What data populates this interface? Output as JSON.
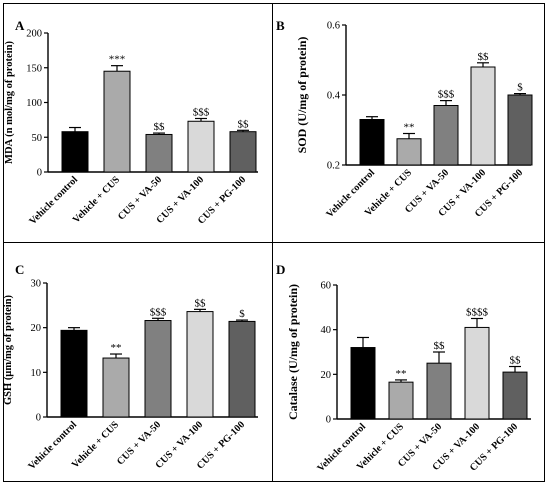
{
  "chart_data": [
    {
      "panel_label": "A",
      "type": "bar",
      "ylabel": "MDA (n mol/mg of protein)",
      "ylim": [
        0,
        200
      ],
      "yticks": [
        "0",
        "50",
        "100",
        "150",
        "200"
      ],
      "categories": [
        "Vehicle control",
        "Vehicle + CUS",
        "CUS + VA-50",
        "CUS + VA-100",
        "CUS + PG-100"
      ],
      "values": [
        58,
        145,
        54,
        73,
        58
      ],
      "errors": [
        6,
        8,
        2,
        4,
        2
      ],
      "annotations": [
        "",
        "***",
        "$$",
        "$$$",
        "$$"
      ],
      "colors": [
        "#000000",
        "#aaaaaa",
        "#808080",
        "#d9d9d9",
        "#606060"
      ]
    },
    {
      "panel_label": "B",
      "type": "bar",
      "ylabel": "SOD (U/mg of protein)",
      "ylim": [
        0.2,
        0.6
      ],
      "yticks": [
        "0.2",
        "0.4",
        "0.6"
      ],
      "categories": [
        "Vehicle control",
        "Vehicle + CUS",
        "CUS + VA-50",
        "CUS + VA-100",
        "CUS + PG-100"
      ],
      "values": [
        0.33,
        0.275,
        0.37,
        0.48,
        0.4
      ],
      "errors": [
        0.008,
        0.015,
        0.014,
        0.012,
        0.004
      ],
      "annotations": [
        "",
        "**",
        "$$$",
        "$$",
        "$"
      ],
      "colors": [
        "#000000",
        "#aaaaaa",
        "#808080",
        "#d9d9d9",
        "#606060"
      ]
    },
    {
      "panel_label": "C",
      "type": "bar",
      "ylabel": "GSH (µm/mg of protein)",
      "ylim": [
        0,
        30
      ],
      "yticks": [
        "0",
        "10",
        "20",
        "30"
      ],
      "categories": [
        "Vehicle control",
        "Vehicle + CUS",
        "CUS + VA-50",
        "CUS + VA-100",
        "CUS + PG-100"
      ],
      "values": [
        19.4,
        13.2,
        21.6,
        23.6,
        21.4
      ],
      "errors": [
        0.6,
        0.9,
        0.5,
        0.5,
        0.3
      ],
      "annotations": [
        "",
        "**",
        "$$$",
        "$$",
        "$"
      ],
      "colors": [
        "#000000",
        "#aaaaaa",
        "#808080",
        "#d9d9d9",
        "#606060"
      ]
    },
    {
      "panel_label": "D",
      "type": "bar",
      "ylabel": "Catalase (U/mg of protein)",
      "ylim": [
        0,
        60
      ],
      "yticks": [
        "0",
        "20",
        "40",
        "60"
      ],
      "categories": [
        "Vehicle control",
        "Vehicle + CUS",
        "CUS + VA-50",
        "CUS + VA-100",
        "CUS + PG-100"
      ],
      "values": [
        32,
        16.5,
        25,
        41,
        21
      ],
      "errors": [
        4.5,
        1,
        5,
        4,
        2.5
      ],
      "annotations": [
        "",
        "**",
        "$$",
        "$$$$",
        "$$"
      ],
      "colors": [
        "#000000",
        "#aaaaaa",
        "#808080",
        "#d9d9d9",
        "#606060"
      ]
    }
  ]
}
